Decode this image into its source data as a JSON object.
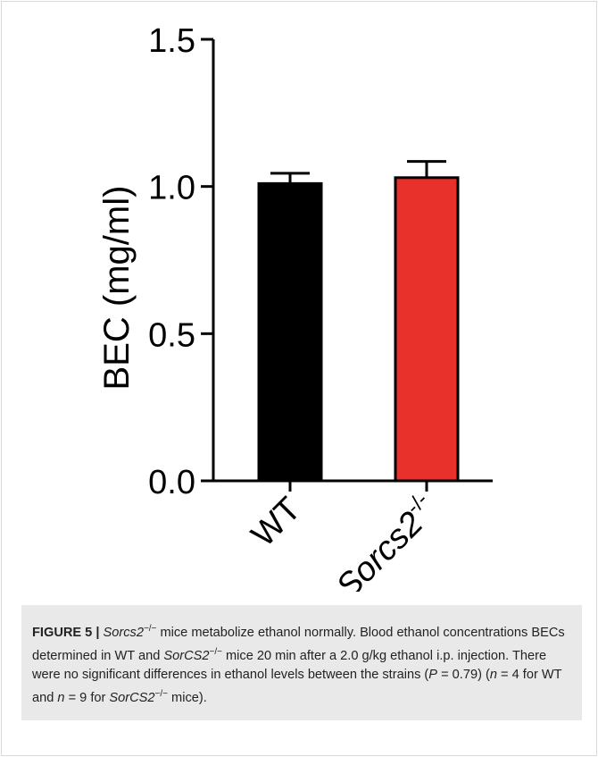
{
  "chart_data": {
    "type": "bar",
    "categories": [
      "WT",
      "Sorcs2-/-"
    ],
    "category_labels": [
      {
        "text": "WT"
      },
      {
        "text": "Sorcs2",
        "sup": "-/-"
      }
    ],
    "values": [
      1.01,
      1.03
    ],
    "error": [
      0.035,
      0.055
    ],
    "colors": [
      "#000000",
      "#e8312a"
    ],
    "ylabel": "BEC (mg/ml)",
    "ylim": [
      0,
      1.5
    ],
    "yticks": [
      "0.0",
      "0.5",
      "1.0",
      "1.5"
    ],
    "ytick_values": [
      0,
      0.5,
      1.0,
      1.5
    ],
    "grid": false,
    "legend": "none"
  },
  "caption": {
    "figure_label": "FIGURE 5 |",
    "parts": [
      {
        "t": " "
      },
      {
        "t": "Sorcs2",
        "i": true
      },
      {
        "t": "−/−",
        "sup": true
      },
      {
        "t": " mice metabolize ethanol normally. Blood ethanol concentrations BECs determined in WT and "
      },
      {
        "t": "SorCS2",
        "i": true
      },
      {
        "t": "−/−",
        "sup": true
      },
      {
        "t": " mice 20 min after a 2.0 g/kg ethanol i.p. injection. There were no significant differences in ethanol levels between the strains ("
      },
      {
        "t": "P",
        "i": true
      },
      {
        "t": " = 0.79) ("
      },
      {
        "t": "n",
        "i": true
      },
      {
        "t": " = 4 for WT and "
      },
      {
        "t": "n",
        "i": true
      },
      {
        "t": " = 9 for "
      },
      {
        "t": "SorCS2",
        "i": true
      },
      {
        "t": "−/−",
        "sup": true
      },
      {
        "t": " mice)."
      }
    ]
  }
}
